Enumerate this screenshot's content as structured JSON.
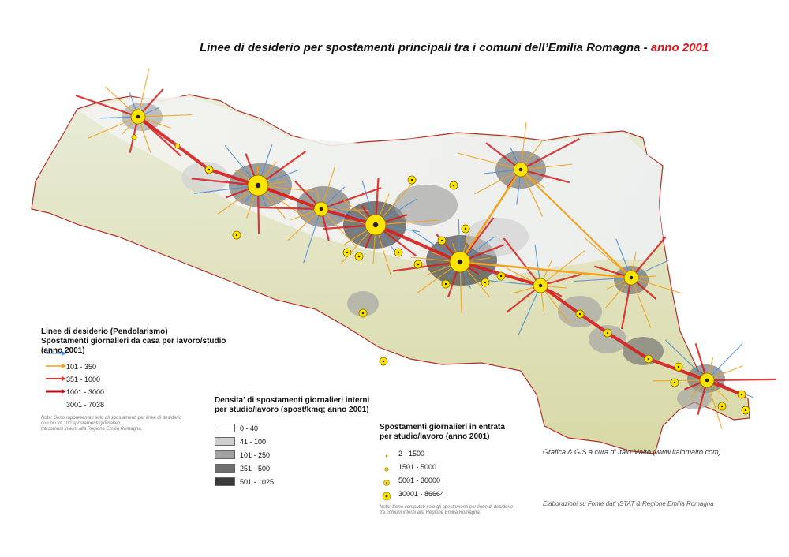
{
  "title": {
    "main": "Linee di desiderio per spostamenti principali tra i comuni dell’Emilia Romagna  - ",
    "year": "anno 2001"
  },
  "legend_lines": {
    "title": "Linee di desiderio (Pendolarismo)\nSpostamenti giornalieri da casa per lavoro/studio\n(anno 2001)",
    "items": [
      {
        "label": "101 - 350",
        "color": "#4f8fd6"
      },
      {
        "label": "351 - 1000",
        "color": "#f2a21b"
      },
      {
        "label": "1001 - 3000",
        "color": "#e8302a"
      },
      {
        "label": "3001 - 7038",
        "color": "#b0101a"
      }
    ],
    "note": "Nota: Sono rappresentati solo gli spostamenti per linee di desiderio\ncon piu' di 100 spostamenti giornalieri,\ntra comuni interni alla Regione Emilia Romagna."
  },
  "legend_density": {
    "title": "Densita' di spostamenti giornalieri interni\nper studio/lavoro (spost/kmq; anno 2001)",
    "items": [
      {
        "label": "0 - 40",
        "color": "#ffffff"
      },
      {
        "label": "41 - 100",
        "color": "#cfcfcf"
      },
      {
        "label": "101 - 250",
        "color": "#a2a2a2"
      },
      {
        "label": "251 - 500",
        "color": "#6e6e6e"
      },
      {
        "label": "501 - 1025",
        "color": "#3a3a3a"
      }
    ]
  },
  "legend_entrata": {
    "title": "Spostamenti giornalieri in entrata\nper studio/lavoro (anno 2001)",
    "items": [
      {
        "label": "2 - 1500",
        "level": 1
      },
      {
        "label": "1501 - 5000",
        "level": 2
      },
      {
        "label": "5001 - 30000",
        "level": 3
      },
      {
        "label": "30001 - 86664",
        "level": 4
      }
    ],
    "note": "Nota: Sono computati solo gli spostamenti per linee di desiderio\ntra comuni interni alla Regione Emilia Romagna."
  },
  "credits": {
    "grafica": "Grafica & GIS a cura di Italo Mairo (www.italomairo.com)",
    "fonte": "Elaborazioni su Fonte dati ISTAT & Regione Emilia Romagna"
  },
  "colors": {
    "accent": "#e0141b",
    "hub_fill": "#ffe400",
    "arrow_red": "#d81e1e",
    "arrow_orange": "#f2a21b",
    "line_blue": "#4f8fd6"
  }
}
